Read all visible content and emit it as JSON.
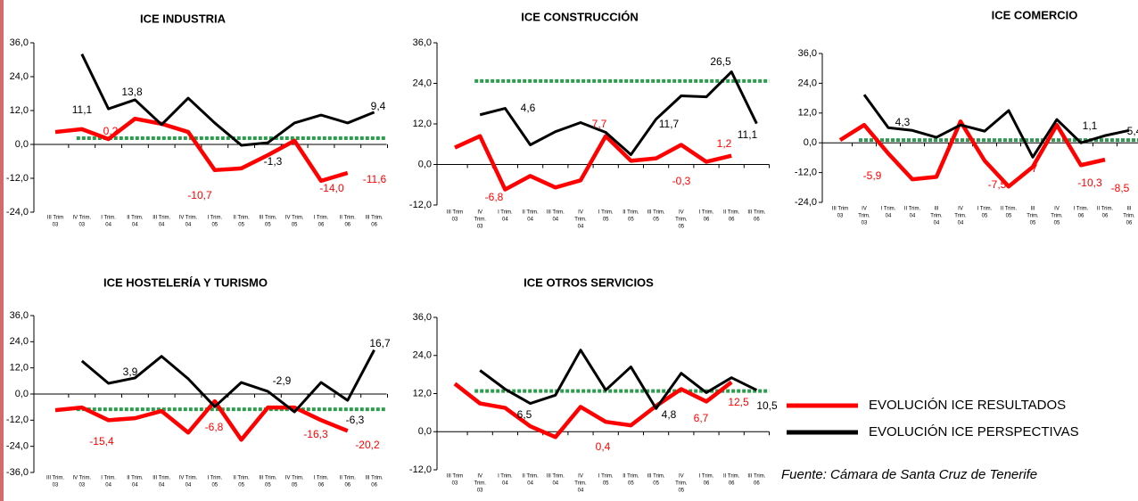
{
  "chart_data": [
    {
      "type": "line",
      "title": "ICE INDUSTRIA",
      "ylim": [
        -24,
        36
      ],
      "yticks": [
        {
          "value": -24,
          "label": "-24,0"
        },
        {
          "value": -12,
          "label": "-12,0"
        },
        {
          "value": 0,
          "label": "0,0"
        },
        {
          "value": 12,
          "label": "12,0"
        },
        {
          "value": 24,
          "label": "24,0"
        },
        {
          "value": 36,
          "label": "36,0"
        }
      ],
      "categories": [
        [
          "III Trim",
          "03"
        ],
        [
          "IV Trim.",
          "03"
        ],
        [
          "I Trim.",
          "04"
        ],
        [
          "II Trim.",
          "04"
        ],
        [
          "III Trim.",
          "04"
        ],
        [
          "IV Trim.",
          "04"
        ],
        [
          "I Trim.",
          "05"
        ],
        [
          "II Trim.",
          "05"
        ],
        [
          "III Trim.",
          "05"
        ],
        [
          "IV Trim.",
          "05"
        ],
        [
          "I Trim.",
          "06"
        ],
        [
          "II Trim.",
          "06"
        ],
        [
          "III Trim.",
          "06"
        ]
      ],
      "series": [
        {
          "color": "#ff0000",
          "values": [
            4.4,
            5.4,
            1.9,
            9.1,
            7.3,
            4.4,
            -9.1,
            -8.5,
            -3.8,
            1.3,
            -12.9,
            -10.1,
            null
          ]
        },
        {
          "color": "#000000",
          "values": [
            null,
            32,
            12.6,
            15.8,
            7,
            16.4,
            7.6,
            -0.3,
            0.6,
            7.6,
            10.4,
            7.6,
            11.4
          ]
        }
      ],
      "reference_line": {
        "value": 2.2,
        "color": "#2e9b4e"
      },
      "annotations": [
        {
          "text": "11,1",
          "color": "#000000"
        },
        {
          "text": "13,8",
          "color": "#000000"
        },
        {
          "text": "0,2",
          "color": "#ff0000"
        },
        {
          "text": "-1,3",
          "color": "#000000"
        },
        {
          "text": "9,4",
          "color": "#000000"
        },
        {
          "text": "-10,7",
          "color": "#ff0000"
        },
        {
          "text": "-14,0",
          "color": "#ff0000"
        },
        {
          "text": "-11,6",
          "color": "#ff0000"
        }
      ]
    },
    {
      "type": "line",
      "title": "ICE CONSTRUCCIÓN",
      "ylim": [
        -12,
        36
      ],
      "yticks": [
        {
          "value": -12,
          "label": "-12,0"
        },
        {
          "value": 0,
          "label": "0,0"
        },
        {
          "value": 12,
          "label": "12,0"
        },
        {
          "value": 24,
          "label": "24,0"
        },
        {
          "value": 36,
          "label": "36,0"
        }
      ],
      "categories": [
        [
          "III Trim",
          "03"
        ],
        [
          "IV",
          "Trim.",
          "03"
        ],
        [
          "I Trim.",
          "04"
        ],
        [
          "II Trim.",
          "04"
        ],
        [
          "III Trim.",
          "04"
        ],
        [
          "IV",
          "Trim.",
          "04"
        ],
        [
          "I Trim.",
          "05"
        ],
        [
          "II Trim.",
          "05"
        ],
        [
          "III Trim.",
          "05"
        ],
        [
          "IV",
          "Trim.",
          "05"
        ],
        [
          "I Trim.",
          "06"
        ],
        [
          "II Trim.",
          "06"
        ],
        [
          "III Trim.",
          "06"
        ]
      ],
      "series": [
        {
          "color": "#ff0000",
          "values": [
            5,
            8.4,
            -7.4,
            -3.4,
            -6.8,
            -4.7,
            8.4,
            1.1,
            1.8,
            5.8,
            0.8,
            2.6,
            null
          ]
        },
        {
          "color": "#000000",
          "values": [
            null,
            14.7,
            16.6,
            5.8,
            9.7,
            12.4,
            9.5,
            2.9,
            13.4,
            20.3,
            20,
            27.4,
            12.1
          ]
        }
      ],
      "reference_line": {
        "value": 24.7,
        "color": "#2e9b4e"
      },
      "annotations": [
        {
          "text": "-6,8",
          "color": "#ff0000"
        },
        {
          "text": "4,6",
          "color": "#000000"
        },
        {
          "text": "7,7",
          "color": "#ff0000"
        },
        {
          "text": "11,7",
          "color": "#000000"
        },
        {
          "text": "26,5",
          "color": "#000000"
        },
        {
          "text": "1,2",
          "color": "#ff0000"
        },
        {
          "text": "11,1",
          "color": "#000000"
        },
        {
          "text": "-0,3",
          "color": "#ff0000"
        }
      ]
    },
    {
      "type": "line",
      "title": "ICE COMERCIO",
      "ylim": [
        -24,
        36
      ],
      "yticks": [
        {
          "value": -24,
          "label": "-24,0"
        },
        {
          "value": -12,
          "label": "-12,0"
        },
        {
          "value": 0,
          "label": "0,0"
        },
        {
          "value": 12,
          "label": "12,0"
        },
        {
          "value": 24,
          "label": "24,0"
        },
        {
          "value": 36,
          "label": "36,0"
        }
      ],
      "categories": [
        [
          "III Trim",
          "03"
        ],
        [
          "IV",
          "Trim.",
          "03"
        ],
        [
          "I Trim.",
          "04"
        ],
        [
          "II Trim.",
          "04"
        ],
        [
          "III",
          "Trim.",
          "04"
        ],
        [
          "IV",
          "Trim.",
          "04"
        ],
        [
          "I Trim.",
          "05"
        ],
        [
          "II Trim.",
          "05"
        ],
        [
          "III",
          "Trim.",
          "05"
        ],
        [
          "IV",
          "Trim.",
          "05"
        ],
        [
          "I Trim.",
          "06"
        ],
        [
          "II Trim.",
          "06"
        ],
        [
          "III",
          "Trim.",
          "06"
        ]
      ],
      "series": [
        {
          "color": "#ff0000",
          "values": [
            1.1,
            7.2,
            -4.3,
            -14.7,
            -13.7,
            8.6,
            -7.2,
            -17.6,
            -9.7,
            7.2,
            -9,
            -6.8,
            null
          ]
        },
        {
          "color": "#000000",
          "values": [
            null,
            19.4,
            6.1,
            5,
            2.2,
            7.2,
            4.7,
            13,
            -5.8,
            9.4,
            0,
            2.9,
            5
          ]
        }
      ],
      "reference_line": {
        "value": 1.1,
        "color": "#2e9b4e"
      },
      "annotations": [
        {
          "text": "-5,9",
          "color": "#ff0000"
        },
        {
          "text": "4,3",
          "color": "#000000"
        },
        {
          "text": "-7,5",
          "color": "#ff0000"
        },
        {
          "text": "-7",
          "color": "#ff0000"
        },
        {
          "text": "1,1",
          "color": "#000000"
        },
        {
          "text": "-10,3",
          "color": "#ff0000"
        },
        {
          "text": "-8,5",
          "color": "#ff0000"
        },
        {
          "text": "5,4",
          "color": "#000000"
        }
      ]
    },
    {
      "type": "line",
      "title": "ICE HOSTELERÍA Y TURISMO",
      "ylim": [
        -36,
        36
      ],
      "yticks": [
        {
          "value": -36,
          "label": "-36,0"
        },
        {
          "value": -24,
          "label": "-24,0"
        },
        {
          "value": -12,
          "label": "-12,0"
        },
        {
          "value": 0,
          "label": "0,0"
        },
        {
          "value": 12,
          "label": "12,0"
        },
        {
          "value": 24,
          "label": "24,0"
        },
        {
          "value": 36,
          "label": "36,0"
        }
      ],
      "categories": [
        [
          "III Trim.",
          "03"
        ],
        [
          "IV Trim.",
          "03"
        ],
        [
          "I Trim.",
          "04"
        ],
        [
          "II Trim.",
          "04"
        ],
        [
          "III Trim.",
          "04"
        ],
        [
          "IV Trim.",
          "04"
        ],
        [
          "I Trim.",
          "05"
        ],
        [
          "II Trim.",
          "05"
        ],
        [
          "III Trim.",
          "05"
        ],
        [
          "IV Trim.",
          "05"
        ],
        [
          "I Trim.",
          "06"
        ],
        [
          "II Trim.",
          "06"
        ],
        [
          "III Trim.",
          "06"
        ]
      ],
      "series": [
        {
          "color": "#ff0000",
          "values": [
            -7.4,
            -6.2,
            -12,
            -11.1,
            -7.8,
            -17.7,
            -3.3,
            -21,
            -6.2,
            -6.2,
            -12,
            -16.9,
            null
          ]
        },
        {
          "color": "#000000",
          "values": [
            null,
            15.2,
            4.9,
            7.4,
            17.3,
            7,
            -5.8,
            5.3,
            1.2,
            -8.2,
            5.3,
            -2.9,
            20.2
          ]
        }
      ],
      "reference_line": {
        "value": -7,
        "color": "#2e9b4e"
      },
      "annotations": [
        {
          "text": "3,9",
          "color": "#000000"
        },
        {
          "text": "-15,4",
          "color": "#ff0000"
        },
        {
          "text": "-6,8",
          "color": "#ff0000"
        },
        {
          "text": "-2,9",
          "color": "#000000"
        },
        {
          "text": "-16,3",
          "color": "#ff0000"
        },
        {
          "text": "-6,3",
          "color": "#000000"
        },
        {
          "text": "16,7",
          "color": "#000000"
        },
        {
          "text": "-20,2",
          "color": "#ff0000"
        }
      ]
    },
    {
      "type": "line",
      "title": "ICE OTROS SERVICIOS",
      "ylim": [
        -12,
        36
      ],
      "yticks": [
        {
          "value": -12,
          "label": "-12,0"
        },
        {
          "value": 0,
          "label": "0,0"
        },
        {
          "value": 12,
          "label": "12,0"
        },
        {
          "value": 24,
          "label": "24,0"
        },
        {
          "value": 36,
          "label": "36,0"
        }
      ],
      "categories": [
        [
          "III Trim",
          "03"
        ],
        [
          "IV",
          "Trim.",
          "03"
        ],
        [
          "I Trim.",
          "04"
        ],
        [
          "II Trim.",
          "04"
        ],
        [
          "III Trim.",
          "04"
        ],
        [
          "IV",
          "Trim.",
          "04"
        ],
        [
          "I Trim.",
          "05"
        ],
        [
          "II Trim.",
          "05"
        ],
        [
          "III Trim.",
          "05"
        ],
        [
          "IV",
          "Trim.",
          "05"
        ],
        [
          "I Trim.",
          "06"
        ],
        [
          "II Trim.",
          "06"
        ],
        [
          "III Trim.",
          "06"
        ]
      ],
      "series": [
        {
          "color": "#ff0000",
          "values": [
            15.1,
            8.9,
            7.5,
            1.7,
            -1.7,
            7.8,
            3.1,
            2,
            8.1,
            13.4,
            9.5,
            15.6,
            null
          ]
        },
        {
          "color": "#000000",
          "values": [
            null,
            19.3,
            13.4,
            8.9,
            11.5,
            25.7,
            13.1,
            20.4,
            7.3,
            18.4,
            12.3,
            17,
            13.1
          ]
        }
      ],
      "reference_line": {
        "value": 12.8,
        "color": "#2e9b4e"
      },
      "annotations": [
        {
          "text": "6,5",
          "color": "#000000"
        },
        {
          "text": "0,4",
          "color": "#ff0000"
        },
        {
          "text": "4,8",
          "color": "#000000"
        },
        {
          "text": "6,7",
          "color": "#ff0000"
        },
        {
          "text": "12,5",
          "color": "#ff0000"
        },
        {
          "text": "10,5",
          "color": "#000000"
        }
      ]
    }
  ],
  "legend": [
    {
      "name": "EVOLUCIÓN ICE RESULTADOS",
      "color": "#ff0000"
    },
    {
      "name": "EVOLUCIÓN ICE PERSPECTIVAS",
      "color": "#000000"
    }
  ],
  "source": "Fuente: Cámara de Santa Cruz de Tenerife"
}
